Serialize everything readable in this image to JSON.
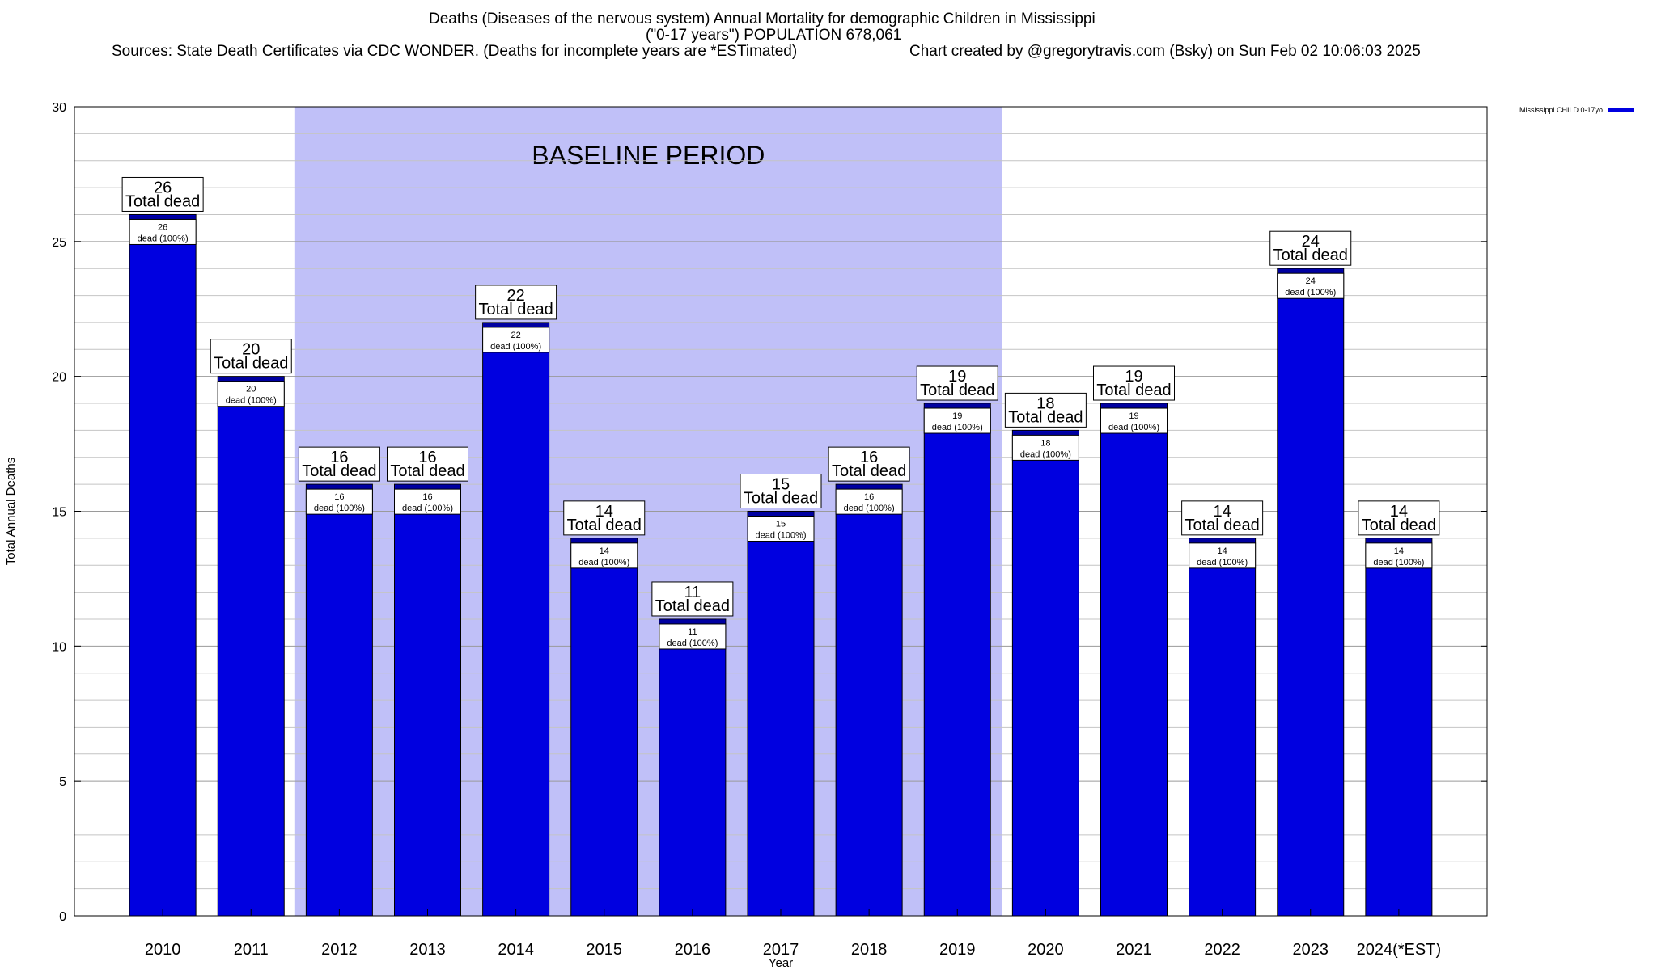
{
  "header": {
    "title_line1": "Deaths (Diseases of the nervous system) Annual Mortality for demographic Children in Mississippi",
    "title_line2": "(\"0-17 years\") POPULATION 678,061",
    "sources": "Sources: State Death Certificates via CDC WONDER. (Deaths for incomplete years are *ESTimated)",
    "credit": "Chart created by @gregorytravis.com (Bsky) on Sun Feb 02 10:06:03 2025"
  },
  "legend": {
    "label": "Mississippi CHILD 0-17yo",
    "color": "#0000e0"
  },
  "chart_data": {
    "type": "bar",
    "xlabel": "Year",
    "ylabel": "Total Annual Deaths",
    "ylim": [
      0,
      30
    ],
    "yticks": [
      0,
      5,
      10,
      15,
      20,
      25,
      30
    ],
    "grid": true,
    "legend_position": "top-right",
    "categories": [
      "2010",
      "2011",
      "2012",
      "2013",
      "2014",
      "2015",
      "2016",
      "2017",
      "2018",
      "2019",
      "2020",
      "2021",
      "2022",
      "2023",
      "2024(*EST)"
    ],
    "series": [
      {
        "name": "Mississippi CHILD 0-17yo",
        "color": "#0000e0",
        "values": [
          26,
          20,
          16,
          16,
          22,
          14,
          11,
          15,
          16,
          19,
          18,
          19,
          14,
          24,
          14
        ]
      }
    ],
    "top_labels": [
      "26\nTotal dead",
      "20\nTotal dead",
      "16\nTotal dead",
      "16\nTotal dead",
      "22\nTotal dead",
      "14\nTotal dead",
      "11\nTotal dead",
      "15\nTotal dead",
      "16\nTotal dead",
      "19\nTotal dead",
      "18\nTotal dead",
      "19\nTotal dead",
      "14\nTotal dead",
      "24\nTotal dead",
      "14\nTotal dead"
    ],
    "inner_labels": [
      "26\ndead (100%)",
      "20\ndead (100%)",
      "16\ndead (100%)",
      "16\ndead (100%)",
      "22\ndead (100%)",
      "14\ndead (100%)",
      "11\ndead (100%)",
      "15\ndead (100%)",
      "16\ndead (100%)",
      "19\ndead (100%)",
      "18\ndead (100%)",
      "19\ndead (100%)",
      "14\ndead (100%)",
      "24\ndead (100%)",
      "14\ndead (100%)"
    ],
    "baseline_period": {
      "label": "BASELINE PERIOD",
      "start": "2012",
      "end": "2019",
      "color": "#c0c0f8"
    }
  }
}
